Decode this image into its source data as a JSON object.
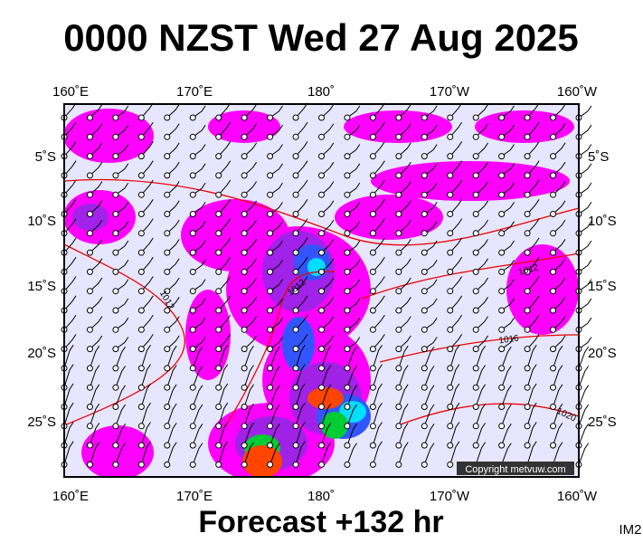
{
  "title": "0000 NZST Wed 27 Aug 2025",
  "lon_labels": [
    "160˚E",
    "170˚E",
    "180˚",
    "170˚W",
    "160˚W"
  ],
  "lat_labels": [
    "5˚S",
    "10˚S",
    "15˚S",
    "20˚S",
    "25˚S"
  ],
  "contour_labels": [
    "1012",
    "1012",
    "1012",
    "1016",
    "1020"
  ],
  "copyright": "Copyright metvuw.com",
  "footer": "Forecast +132 hr",
  "corner": "IM2"
}
